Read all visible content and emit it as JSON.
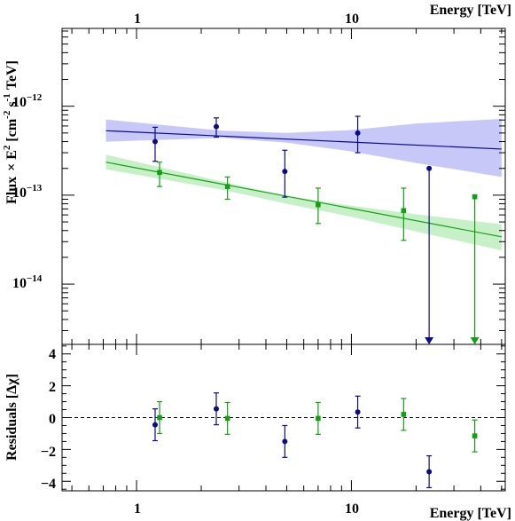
{
  "chart_data": [
    {
      "type": "scatter",
      "panel": "spectrum",
      "xscale": "log",
      "yscale": "log",
      "xlabel": "Energy [TeV]",
      "ylabel_parts": {
        "main": "Flux",
        "times": "× E",
        "sq": "2",
        "open": "[cm",
        "exp1": "-2",
        "s": "s",
        "exp2": "-1",
        "close": "TeV]"
      },
      "xlim": [
        0.45,
        52
      ],
      "ylim": [
        2.1e-15,
        7.5e-12
      ],
      "x_tick_labels": [
        "1",
        "10"
      ],
      "y_tick_labels": [
        {
          "mant": "10",
          "exp": "−12",
          "value": 1e-12
        },
        {
          "mant": "10",
          "exp": "−13",
          "value": 1e-13
        },
        {
          "mant": "10",
          "exp": "−14",
          "value": 1e-14
        }
      ],
      "grid": false,
      "series": [
        {
          "color": "#0a0a8c",
          "marker": "circle",
          "points": [
            {
              "x": 1.22,
              "y": 4e-13,
              "ylo": 2.4e-13,
              "yhi": 5.8e-13
            },
            {
              "x": 2.35,
              "y": 5.9e-13,
              "ylo": 4.5e-13,
              "yhi": 7.4e-13
            },
            {
              "x": 4.9,
              "y": 1.85e-13,
              "ylo": 9.5e-14,
              "yhi": 3.2e-13
            },
            {
              "x": 10.7,
              "y": 5e-13,
              "ylo": 3e-13,
              "yhi": 7.7e-13
            }
          ],
          "upper_limits": [
            {
              "x": 23.0,
              "y": 2e-13
            }
          ],
          "model_line": [
            [
              0.72,
              5.3e-13
            ],
            [
              50,
              3.3e-13
            ]
          ],
          "band_color": "#c8c8f8",
          "band": [
            {
              "x": 0.72,
              "lo": 4e-13,
              "hi": 7.1e-13
            },
            {
              "x": 2.5,
              "lo": 4.4e-13,
              "hi": 5.3e-13
            },
            {
              "x": 5.0,
              "lo": 3.9e-13,
              "hi": 5e-13
            },
            {
              "x": 10,
              "lo": 3.1e-13,
              "hi": 5.4e-13
            },
            {
              "x": 20,
              "lo": 2.3e-13,
              "hi": 6.4e-13
            },
            {
              "x": 50,
              "lo": 1.6e-13,
              "hi": 7.2e-13
            }
          ]
        },
        {
          "color": "#12a012",
          "marker": "square",
          "points": [
            {
              "x": 1.28,
              "y": 1.8e-13,
              "ylo": 1.25e-13,
              "yhi": 2.35e-13
            },
            {
              "x": 2.65,
              "y": 1.25e-13,
              "ylo": 9e-14,
              "yhi": 1.6e-13
            },
            {
              "x": 7.0,
              "y": 7.8e-14,
              "ylo": 4.8e-14,
              "yhi": 1.2e-13
            },
            {
              "x": 17.5,
              "y": 6.7e-14,
              "ylo": 3.1e-14,
              "yhi": 1.2e-13
            }
          ],
          "upper_limits": [
            {
              "x": 37.5,
              "y": 9.6e-14
            }
          ],
          "model_line": [
            [
              0.72,
              2.35e-13
            ],
            [
              50,
              3.4e-14
            ]
          ],
          "band_color": "#c8f0c8",
          "band": [
            {
              "x": 0.72,
              "lo": 1.95e-13,
              "hi": 2.85e-13
            },
            {
              "x": 2.5,
              "lo": 1.15e-13,
              "hi": 1.42e-13
            },
            {
              "x": 5.0,
              "lo": 8e-14,
              "hi": 9.8e-14
            },
            {
              "x": 10,
              "lo": 5.7e-14,
              "hi": 7.6e-14
            },
            {
              "x": 20,
              "lo": 3.9e-14,
              "hi": 6.1e-14
            },
            {
              "x": 50,
              "lo": 2.4e-14,
              "hi": 4.7e-14
            }
          ]
        }
      ]
    },
    {
      "type": "scatter",
      "panel": "residuals",
      "xscale": "log",
      "xlabel": "Energy [TeV]",
      "ylabel": "Residuals [Δχ]",
      "xlim": [
        0.45,
        52
      ],
      "ylim": [
        -4.6,
        4.6
      ],
      "x_tick_labels": [
        "1",
        "10"
      ],
      "y_tick_labels": [
        "4",
        "2",
        "0",
        "−2",
        "−4"
      ],
      "y_tick_values": [
        4,
        2,
        0,
        -2,
        -4
      ],
      "zero_line": true,
      "series": [
        {
          "color": "#0a0a8c",
          "marker": "circle",
          "points": [
            {
              "x": 1.22,
              "y": -0.45,
              "err": 1.0
            },
            {
              "x": 2.35,
              "y": 0.55,
              "err": 1.0
            },
            {
              "x": 4.9,
              "y": -1.5,
              "err": 1.0
            },
            {
              "x": 10.7,
              "y": 0.35,
              "err": 1.0
            },
            {
              "x": 23.0,
              "y": -3.4,
              "err": 1.0
            }
          ]
        },
        {
          "color": "#12a012",
          "marker": "square",
          "points": [
            {
              "x": 1.28,
              "y": 0.0,
              "err": 1.0
            },
            {
              "x": 2.65,
              "y": -0.05,
              "err": 1.0
            },
            {
              "x": 7.0,
              "y": -0.05,
              "err": 1.0
            },
            {
              "x": 17.5,
              "y": 0.2,
              "err": 1.0
            },
            {
              "x": 37.5,
              "y": -1.15,
              "err": 1.0
            }
          ]
        }
      ]
    }
  ]
}
